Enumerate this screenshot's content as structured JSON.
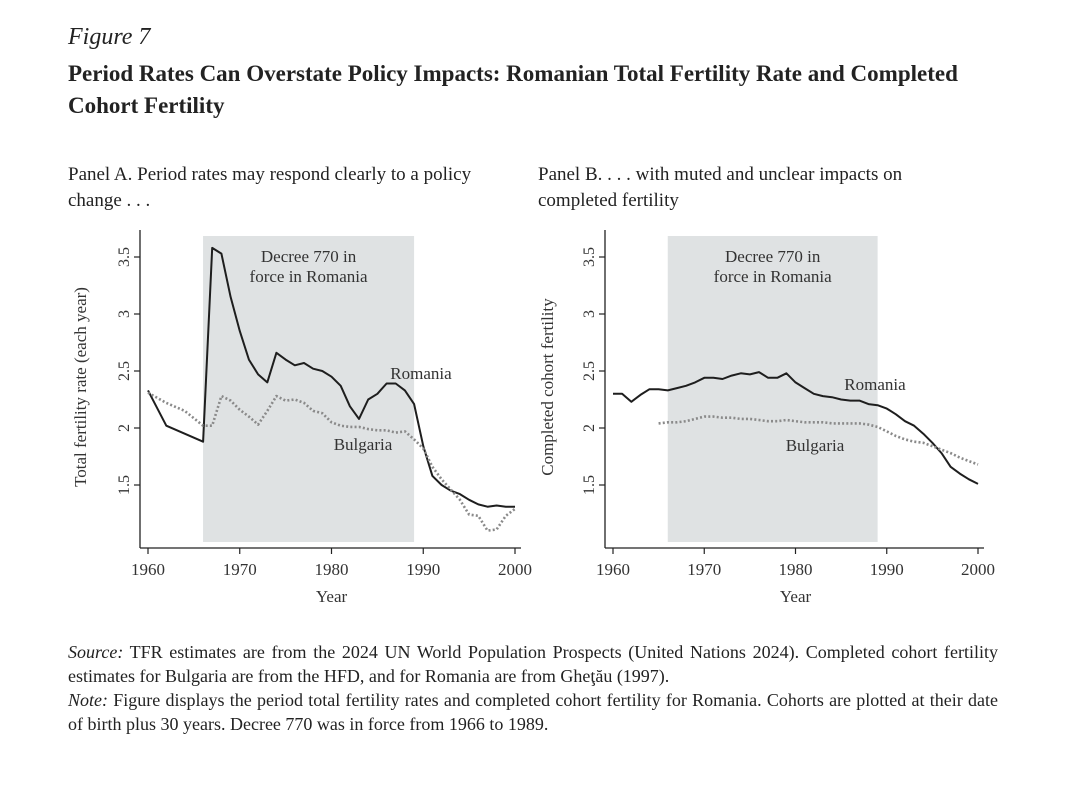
{
  "figure_label": "Figure 7",
  "title": "Period Rates Can Overstate Policy Impacts: Romanian Total Fertility Rate and Completed Cohort Fertility",
  "chart_data": [
    {
      "type": "line",
      "panel_title": "Panel A. Period rates may respond clearly to a policy change . . .",
      "xlabel": "Year",
      "ylabel": "Total fertility rate (each year)",
      "xlim": [
        1960,
        2000
      ],
      "ylim": [
        1.0,
        3.75
      ],
      "xticks": [
        "1960",
        "1970",
        "1980",
        "1990",
        "2000"
      ],
      "yticks": [
        "1.5",
        "2",
        "2.5",
        "3",
        "3.5"
      ],
      "shaded_region": {
        "from": 1966,
        "to": 1989,
        "label_line1": "Decree 770 in",
        "label_line2": "force in Romania"
      },
      "series": [
        {
          "name": "Romania",
          "style": "solid",
          "x": [
            1960,
            1962,
            1964,
            1966,
            1967,
            1968,
            1969,
            1970,
            1971,
            1972,
            1973,
            1974,
            1975,
            1976,
            1977,
            1978,
            1979,
            1980,
            1981,
            1982,
            1983,
            1984,
            1985,
            1986,
            1987,
            1988,
            1989,
            1990,
            1991,
            1992,
            1993,
            1994,
            1995,
            1996,
            1997,
            1998,
            1999,
            2000
          ],
          "values": [
            2.33,
            2.02,
            1.95,
            1.88,
            3.58,
            3.53,
            3.15,
            2.85,
            2.6,
            2.47,
            2.4,
            2.66,
            2.6,
            2.55,
            2.57,
            2.52,
            2.5,
            2.45,
            2.37,
            2.19,
            2.08,
            2.25,
            2.3,
            2.39,
            2.39,
            2.33,
            2.21,
            1.84,
            1.58,
            1.5,
            1.45,
            1.42,
            1.37,
            1.33,
            1.31,
            1.32,
            1.31,
            1.31
          ]
        },
        {
          "name": "Bulgaria",
          "style": "dotted",
          "x": [
            1960,
            1962,
            1964,
            1966,
            1967,
            1968,
            1969,
            1970,
            1971,
            1972,
            1973,
            1974,
            1975,
            1976,
            1977,
            1978,
            1979,
            1980,
            1981,
            1982,
            1983,
            1984,
            1985,
            1986,
            1987,
            1988,
            1989,
            1990,
            1991,
            1992,
            1993,
            1994,
            1995,
            1996,
            1997,
            1998,
            1999,
            2000
          ],
          "values": [
            2.31,
            2.22,
            2.15,
            2.02,
            2.02,
            2.28,
            2.24,
            2.16,
            2.1,
            2.03,
            2.15,
            2.28,
            2.24,
            2.25,
            2.22,
            2.15,
            2.13,
            2.05,
            2.02,
            2.01,
            2.01,
            1.99,
            1.98,
            1.98,
            1.96,
            1.97,
            1.9,
            1.82,
            1.66,
            1.55,
            1.46,
            1.37,
            1.24,
            1.23,
            1.1,
            1.11,
            1.23,
            1.29
          ]
        }
      ]
    },
    {
      "type": "line",
      "panel_title": "Panel B. . . . with muted and unclear impacts on completed fertility",
      "xlabel": "Year",
      "ylabel": "Completed cohort fertility",
      "xlim": [
        1960,
        2000
      ],
      "ylim": [
        1.0,
        3.75
      ],
      "xticks": [
        "1960",
        "1970",
        "1980",
        "1990",
        "2000"
      ],
      "yticks": [
        "1.5",
        "2",
        "2.5",
        "3",
        "3.5"
      ],
      "shaded_region": {
        "from": 1966,
        "to": 1989,
        "label_line1": "Decree 770 in",
        "label_line2": "force in Romania"
      },
      "series": [
        {
          "name": "Romania",
          "style": "solid",
          "x": [
            1960,
            1961,
            1962,
            1963,
            1964,
            1965,
            1966,
            1967,
            1968,
            1969,
            1970,
            1971,
            1972,
            1973,
            1974,
            1975,
            1976,
            1977,
            1978,
            1979,
            1980,
            1981,
            1982,
            1983,
            1984,
            1985,
            1986,
            1987,
            1988,
            1989,
            1990,
            1991,
            1992,
            1993,
            1994,
            1995,
            1996,
            1997,
            1998,
            1999,
            2000
          ],
          "values": [
            2.3,
            2.3,
            2.23,
            2.29,
            2.34,
            2.34,
            2.33,
            2.35,
            2.37,
            2.4,
            2.44,
            2.44,
            2.43,
            2.46,
            2.48,
            2.47,
            2.49,
            2.44,
            2.44,
            2.48,
            2.4,
            2.35,
            2.3,
            2.28,
            2.27,
            2.25,
            2.24,
            2.24,
            2.21,
            2.2,
            2.17,
            2.12,
            2.06,
            2.02,
            1.95,
            1.87,
            1.78,
            1.66,
            1.6,
            1.55,
            1.51
          ]
        },
        {
          "name": "Bulgaria",
          "style": "dotted",
          "x": [
            1965,
            1966,
            1967,
            1968,
            1969,
            1970,
            1971,
            1972,
            1973,
            1974,
            1975,
            1976,
            1977,
            1978,
            1979,
            1980,
            1981,
            1982,
            1983,
            1984,
            1985,
            1986,
            1987,
            1988,
            1989,
            1990,
            1991,
            1992,
            1993,
            1994,
            1995,
            1996,
            1997,
            1998,
            1999,
            2000
          ],
          "values": [
            2.04,
            2.05,
            2.05,
            2.06,
            2.08,
            2.1,
            2.1,
            2.09,
            2.09,
            2.08,
            2.08,
            2.07,
            2.06,
            2.06,
            2.07,
            2.06,
            2.05,
            2.05,
            2.05,
            2.04,
            2.04,
            2.04,
            2.04,
            2.03,
            2.01,
            1.97,
            1.93,
            1.9,
            1.88,
            1.87,
            1.84,
            1.81,
            1.78,
            1.74,
            1.71,
            1.68
          ]
        }
      ]
    }
  ],
  "source": {
    "source_label": "Source:",
    "source_text": " TFR estimates are from the 2024 UN World Population Prospects (United Nations 2024). Completed cohort fertility estimates for Bulgaria are from the HFD, and for Romania are from Gheţău (1997).",
    "note_label": "Note:",
    "note_text": " Figure displays the period total fertility rates and completed cohort fertility for Romania. Cohorts are plotted at their date of birth plus 30 years. Decree 770 was in force from 1966 to 1989."
  }
}
